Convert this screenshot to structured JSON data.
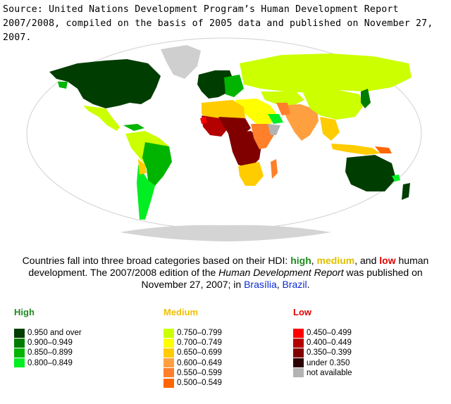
{
  "source": "Source: United Nations Development Program’s Human Development Report 2007/2008, compiled on the basis of 2005 data and published on November 27, 2007.",
  "caption": {
    "intro": "Countries fall into three broad categories based on their HDI: ",
    "high": "high",
    "sep1": ", ",
    "medium": "medium",
    "sep2": ", and ",
    "low": "low",
    "mid": " human development. The 2007/2008 edition of the ",
    "report_title": "Human Development Report",
    "mid2": " was published on November 27, 2007; in ",
    "city_link": "Brasília",
    "sep3": ", ",
    "country_link": "Brazil",
    "end": "."
  },
  "legend": {
    "high": {
      "title": "High",
      "title_color": "#1e8c1e",
      "items": [
        {
          "label": "0.950 and over",
          "color": "#003d00"
        },
        {
          "label": "0.900–0.949",
          "color": "#007d00"
        },
        {
          "label": "0.850–0.899",
          "color": "#00b400"
        },
        {
          "label": "0.800–0.849",
          "color": "#00ee22"
        }
      ]
    },
    "medium": {
      "title": "Medium",
      "title_color": "#f0c000",
      "items": [
        {
          "label": "0.750–0.799",
          "color": "#ccff00"
        },
        {
          "label": "0.700–0.749",
          "color": "#ffff00"
        },
        {
          "label": "0.650–0.699",
          "color": "#ffcc00"
        },
        {
          "label": "0.600–0.649",
          "color": "#ffa040"
        },
        {
          "label": "0.550–0.599",
          "color": "#ff7f2a"
        },
        {
          "label": "0.500–0.549",
          "color": "#ff6600"
        }
      ]
    },
    "low": {
      "title": "Low",
      "title_color": "#e00000",
      "items": [
        {
          "label": "0.450–0.499",
          "color": "#ff0000"
        },
        {
          "label": "0.400–0.449",
          "color": "#b30000"
        },
        {
          "label": "0.350–0.399",
          "color": "#800000"
        },
        {
          "label": "under 0.350",
          "color": "#2b0000"
        },
        {
          "label": "not available",
          "color": "#b3b3b3"
        }
      ]
    }
  }
}
